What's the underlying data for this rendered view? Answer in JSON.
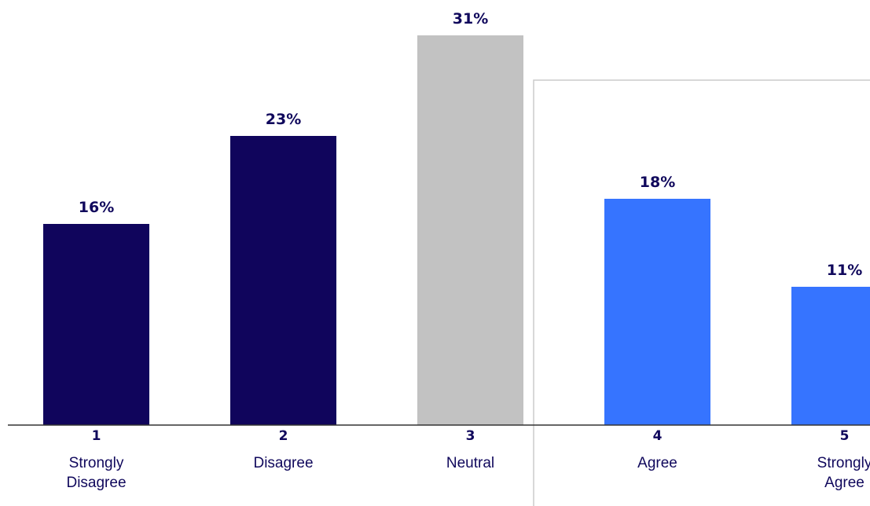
{
  "chart_data": {
    "type": "bar",
    "categories": [
      "1",
      "2",
      "3",
      "4",
      "5"
    ],
    "category_labels": [
      [
        "Strongly",
        "Disagree"
      ],
      [
        "Disagree"
      ],
      [
        "Neutral"
      ],
      [
        "Agree"
      ],
      [
        "Strongly",
        "Agree"
      ]
    ],
    "values": [
      16,
      23,
      31,
      18,
      11
    ],
    "value_labels": [
      "16%",
      "23%",
      "31%",
      "18%",
      "11%"
    ],
    "bar_colors": [
      "#10055c",
      "#10055c",
      "#c2c2c2",
      "#3674ff",
      "#3674ff"
    ],
    "ylim": [
      0,
      32
    ],
    "grid": false,
    "highlight_box_categories": [
      "4",
      "5"
    ],
    "highlight_box_color": "#cccccc",
    "axis_color": "#333333",
    "text_color": "#10085c"
  }
}
